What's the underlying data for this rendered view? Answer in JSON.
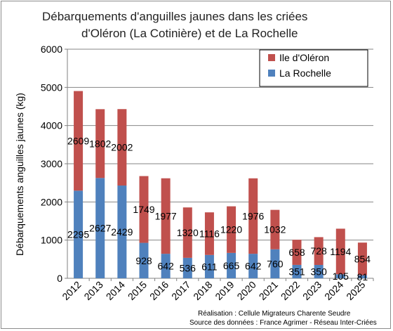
{
  "chart_data": {
    "type": "bar",
    "stacked": true,
    "title_lines": [
      "Débarquements d'anguilles jaunes dans les criées",
      "d'Oléron (La Cotinière)  et de La Rochelle"
    ],
    "ylabel": "Débarquements anguilles jaunes (kg)",
    "ylim": [
      0,
      6000
    ],
    "yticks": [
      0,
      1000,
      2000,
      3000,
      4000,
      5000,
      6000
    ],
    "grid": true,
    "legend_position": "top-right",
    "categories": [
      "2012",
      "2013",
      "2014",
      "2015",
      "2016",
      "2017",
      "2018",
      "2019",
      "2020",
      "2021",
      "2022",
      "2023",
      "2024",
      "2025"
    ],
    "series": [
      {
        "name": "La Rochelle",
        "color": "#4f81bd",
        "values": [
          2295,
          2627,
          2429,
          928,
          642,
          536,
          611,
          665,
          642,
          760,
          351,
          350,
          105,
          81
        ]
      },
      {
        "name": "Ile d'Oléron",
        "color": "#c0504d",
        "values": [
          2609,
          1802,
          2002,
          1749,
          1977,
          1320,
          1116,
          1220,
          1976,
          1032,
          658,
          728,
          1194,
          854
        ]
      }
    ]
  },
  "notes": {
    "line1": "Réalisation : Cellule Migrateurs Charente Seudre",
    "line2": "Source des données : France Agrimer - Réseau Inter-Criées"
  }
}
